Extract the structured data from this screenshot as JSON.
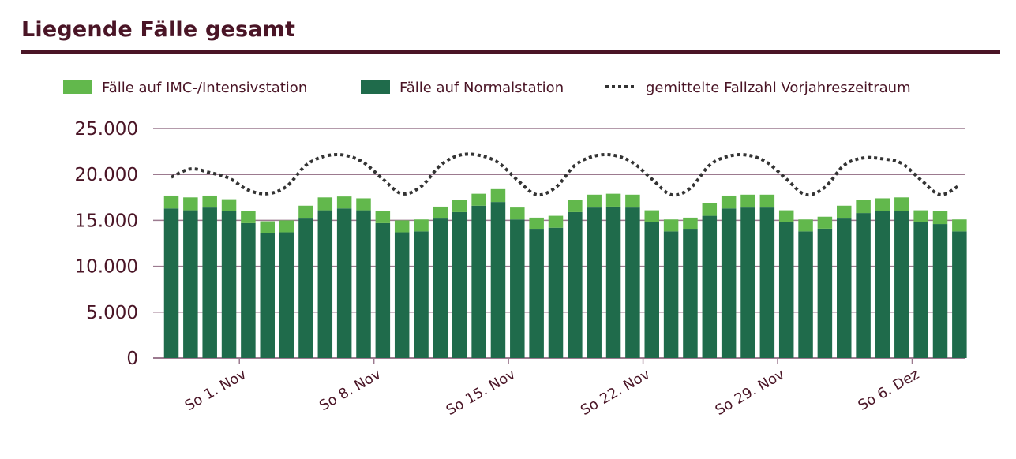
{
  "title": "Liegende Fälle gesamt",
  "colors": {
    "title": "#4a1526",
    "normal": "#1f6b4b",
    "imc": "#62b84c",
    "grid": "#9c7a8f",
    "line": "#333333"
  },
  "legend": {
    "imc": "Fälle auf IMC-/Intensivstation",
    "normal": "Fälle auf Normalstation",
    "line": "gemittelte Fallzahl Vorjahreszeitraum"
  },
  "chart_data": {
    "type": "bar",
    "stacked": true,
    "ylim": [
      0,
      25000
    ],
    "yticks": [
      "0",
      "5.000",
      "10.000",
      "15.000",
      "20.000",
      "25.000"
    ],
    "xtick_labels": [
      {
        "label": "So 1. Nov",
        "index": 4
      },
      {
        "label": "So 8. Nov",
        "index": 11
      },
      {
        "label": "So 15. Nov",
        "index": 18
      },
      {
        "label": "So 22. Nov",
        "index": 25
      },
      {
        "label": "So 29. Nov",
        "index": 32
      },
      {
        "label": "So 6. Dez",
        "index": 39
      }
    ],
    "grid": true,
    "legend_position": "top",
    "series": [
      {
        "name": "Fälle auf Normalstation",
        "values": [
          16300,
          16100,
          16400,
          16000,
          14700,
          13600,
          13700,
          15200,
          16100,
          16300,
          16100,
          14700,
          13700,
          13800,
          15200,
          15900,
          16600,
          17000,
          15100,
          14000,
          14200,
          15900,
          16400,
          16500,
          16400,
          14800,
          13800,
          14000,
          15500,
          16300,
          16400,
          16400,
          14800,
          13800,
          14100,
          15200,
          15800,
          16000,
          16000,
          14800,
          14600,
          13800
        ]
      },
      {
        "name": "Fälle auf IMC-/Intensivstation",
        "values": [
          1400,
          1400,
          1300,
          1300,
          1300,
          1300,
          1300,
          1400,
          1400,
          1300,
          1300,
          1300,
          1300,
          1300,
          1300,
          1300,
          1300,
          1400,
          1300,
          1300,
          1300,
          1300,
          1400,
          1400,
          1400,
          1300,
          1300,
          1300,
          1400,
          1400,
          1400,
          1400,
          1300,
          1300,
          1300,
          1400,
          1400,
          1400,
          1500,
          1300,
          1400,
          1300
        ]
      },
      {
        "name": "gemittelte Fallzahl Vorjahreszeitraum",
        "type": "line",
        "values": [
          19700,
          20600,
          20200,
          19600,
          18300,
          17900,
          18700,
          21000,
          22000,
          22100,
          21300,
          19500,
          17900,
          18700,
          21000,
          22100,
          22100,
          21300,
          19400,
          17800,
          18600,
          21000,
          22000,
          22100,
          21300,
          19500,
          17800,
          18500,
          21000,
          22000,
          22100,
          21300,
          19500,
          17800,
          18600,
          21000,
          21800,
          21700,
          21200,
          19400,
          17800,
          18800
        ]
      }
    ]
  }
}
